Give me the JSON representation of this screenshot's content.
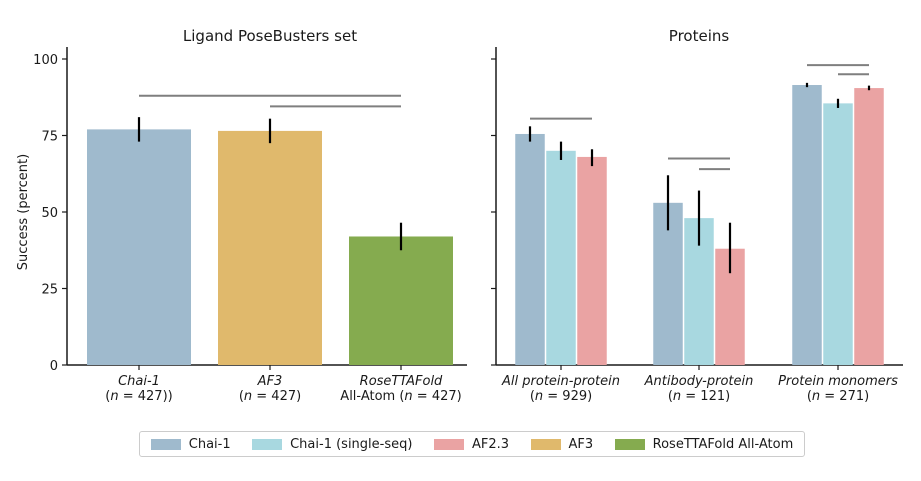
{
  "colors": {
    "Chai-1": "#9fbacd",
    "Chai-1 (single-seq)": "#a8d8e0",
    "AF2.3": "#eaa3a3",
    "AF3": "#e0b96c",
    "RoseTTAFold All-Atom": "#85ab4f"
  },
  "legend": {
    "items": [
      {
        "label": "Chai-1",
        "color": "#9fbacd"
      },
      {
        "label": "Chai-1 (single-seq)",
        "color": "#a8d8e0"
      },
      {
        "label": "AF2.3",
        "color": "#eaa3a3"
      },
      {
        "label": "AF3",
        "color": "#e0b96c"
      },
      {
        "label": "RoseTTAFold All-Atom",
        "color": "#85ab4f"
      }
    ]
  },
  "chart_data": [
    {
      "type": "bar",
      "title": "Ligand PoseBusters set",
      "ylabel": "Success (percent)",
      "ylim": [
        0,
        100
      ],
      "yticks": [
        "0",
        "25",
        "50",
        "75",
        "100"
      ],
      "categories": [
        {
          "lines": [
            [
              "",
              "Chai-1"
            ],
            [
              "(",
              "n",
              " = 427))"
            ]
          ]
        },
        {
          "lines": [
            [
              "",
              "AF3"
            ],
            [
              "(",
              "n",
              " = 427)"
            ]
          ]
        },
        {
          "lines": [
            [
              "",
              "RoseTTAFold"
            ],
            [
              "All-Atom (",
              "n",
              " = 427)"
            ]
          ]
        }
      ],
      "series": [
        {
          "name": "Chai-1",
          "category": 0,
          "value": 77,
          "err": [
            73,
            81
          ]
        },
        {
          "name": "AF3",
          "category": 1,
          "value": 76.5,
          "err": [
            72.5,
            80.5
          ]
        },
        {
          "name": "RoseTTAFold All-Atom",
          "category": 2,
          "value": 42,
          "err": [
            37.5,
            46.5
          ]
        }
      ],
      "brackets": [
        {
          "y": 88,
          "from": 0,
          "to": 2
        },
        {
          "y": 84.5,
          "from": 1,
          "to": 2
        }
      ]
    },
    {
      "type": "bar",
      "title": "Proteins",
      "ylim": [
        0,
        100
      ],
      "categories": [
        {
          "lines": [
            [
              "",
              "All protein-protein"
            ],
            [
              "(",
              "n",
              " = 929)"
            ]
          ]
        },
        {
          "lines": [
            [
              "",
              "Antibody-protein"
            ],
            [
              "(",
              "n",
              " = 121)"
            ]
          ]
        },
        {
          "lines": [
            [
              "",
              "Protein monomers"
            ],
            [
              "(",
              "n",
              " = 271)"
            ]
          ]
        }
      ],
      "series": [
        {
          "name": "Chai-1",
          "values": [
            75.5,
            53,
            91.5
          ],
          "err": [
            [
              73,
              78
            ],
            [
              44,
              62
            ],
            [
              90.8,
              92.2
            ]
          ]
        },
        {
          "name": "Chai-1 (single-seq)",
          "values": [
            70,
            48,
            85.5
          ],
          "err": [
            [
              67,
              73
            ],
            [
              39,
              57
            ],
            [
              84,
              87
            ]
          ]
        },
        {
          "name": "AF2.3",
          "values": [
            68,
            38,
            90.5
          ],
          "err": [
            [
              65,
              70.5
            ],
            [
              30,
              46.5
            ],
            [
              89.8,
              91.3
            ]
          ]
        }
      ],
      "brackets": [
        [
          {
            "y": 80.5,
            "from": 0,
            "to": 2
          }
        ],
        [
          {
            "y": 67.5,
            "from": 0,
            "to": 2
          },
          {
            "y": 64,
            "from": 1,
            "to": 2
          }
        ],
        [
          {
            "y": 98,
            "from": 0,
            "to": 2
          },
          {
            "y": 95,
            "from": 1,
            "to": 2
          }
        ]
      ]
    }
  ]
}
